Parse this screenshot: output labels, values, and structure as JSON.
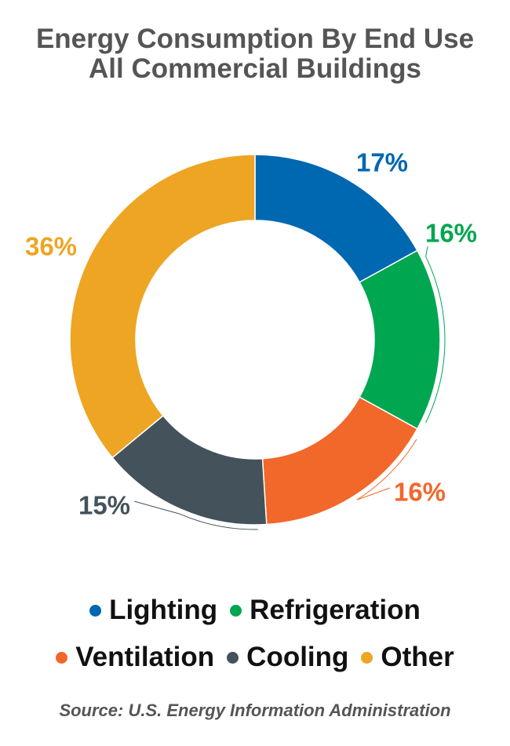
{
  "chart_data": {
    "type": "donut",
    "title": "Energy Consumption By End Use",
    "subtitle": "All Commercial Buildings",
    "categories": [
      "Lighting",
      "Refrigeration",
      "Ventilation",
      "Cooling",
      "Other"
    ],
    "values": [
      17,
      16,
      16,
      15,
      36
    ],
    "value_labels": [
      "17%",
      "16%",
      "16%",
      "15%",
      "36%"
    ],
    "colors": [
      "#0067b1",
      "#00a650",
      "#f2672a",
      "#44525c",
      "#eea524"
    ],
    "source": "Source: U.S. Energy Information Administration"
  }
}
